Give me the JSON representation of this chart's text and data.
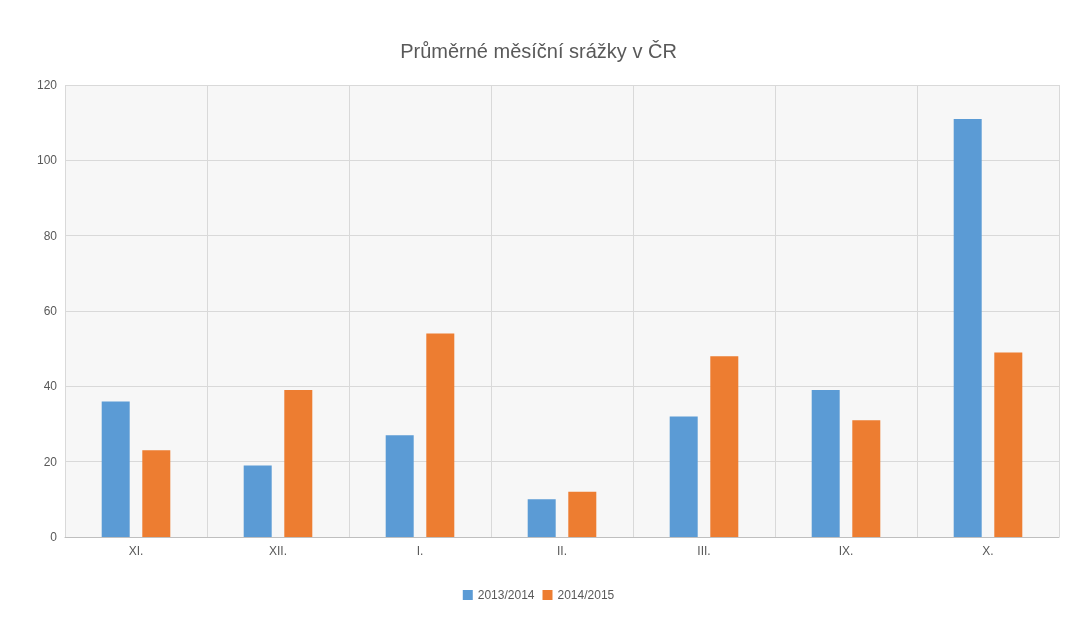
{
  "chart_data": {
    "type": "bar",
    "title": "Průměrné měsíční srážky v ČR",
    "categories": [
      "XI.",
      "XII.",
      "I.",
      "II.",
      "III.",
      "IX.",
      "X."
    ],
    "series": [
      {
        "name": "2013/2014",
        "color": "#5b9bd5",
        "values": [
          36,
          19,
          27,
          10,
          32,
          39,
          111
        ]
      },
      {
        "name": "2014/2015",
        "color": "#ed7d31",
        "values": [
          23,
          39,
          54,
          12,
          48,
          31,
          49
        ]
      }
    ],
    "ylim": [
      0,
      120
    ],
    "yticks": [
      0,
      20,
      40,
      60,
      80,
      100,
      120
    ],
    "grid": true,
    "legend": "bottom"
  }
}
